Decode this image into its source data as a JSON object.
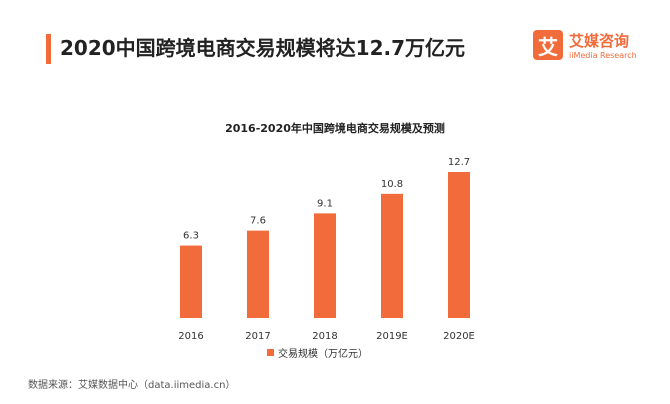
{
  "header": {
    "title": "2020中国跨境电商交易规模将达12.7万亿元"
  },
  "logo": {
    "mark": "艾",
    "name_cn": "艾媒咨询",
    "name_en": "iiMedia Research"
  },
  "colors": {
    "accent": "#f26b3a",
    "bar": "#f26b3a"
  },
  "chart_data": {
    "type": "bar",
    "title": "2016-2020年中国跨境电商交易规模及预测",
    "categories": [
      "2016",
      "2017",
      "2018",
      "2019E",
      "2020E"
    ],
    "series": [
      {
        "name": "交易规模（万亿元）",
        "values": [
          6.3,
          7.6,
          9.1,
          10.8,
          12.7
        ]
      }
    ],
    "data_labels": [
      "6.3",
      "7.6",
      "9.1",
      "10.8",
      "12.7"
    ],
    "xlabel": "",
    "ylabel": "",
    "ylim": [
      0,
      12.7
    ],
    "grid": false,
    "legend": "bottom"
  },
  "footer": {
    "source": "数据来源：艾媒数据中心（data.iimedia.cn）"
  }
}
